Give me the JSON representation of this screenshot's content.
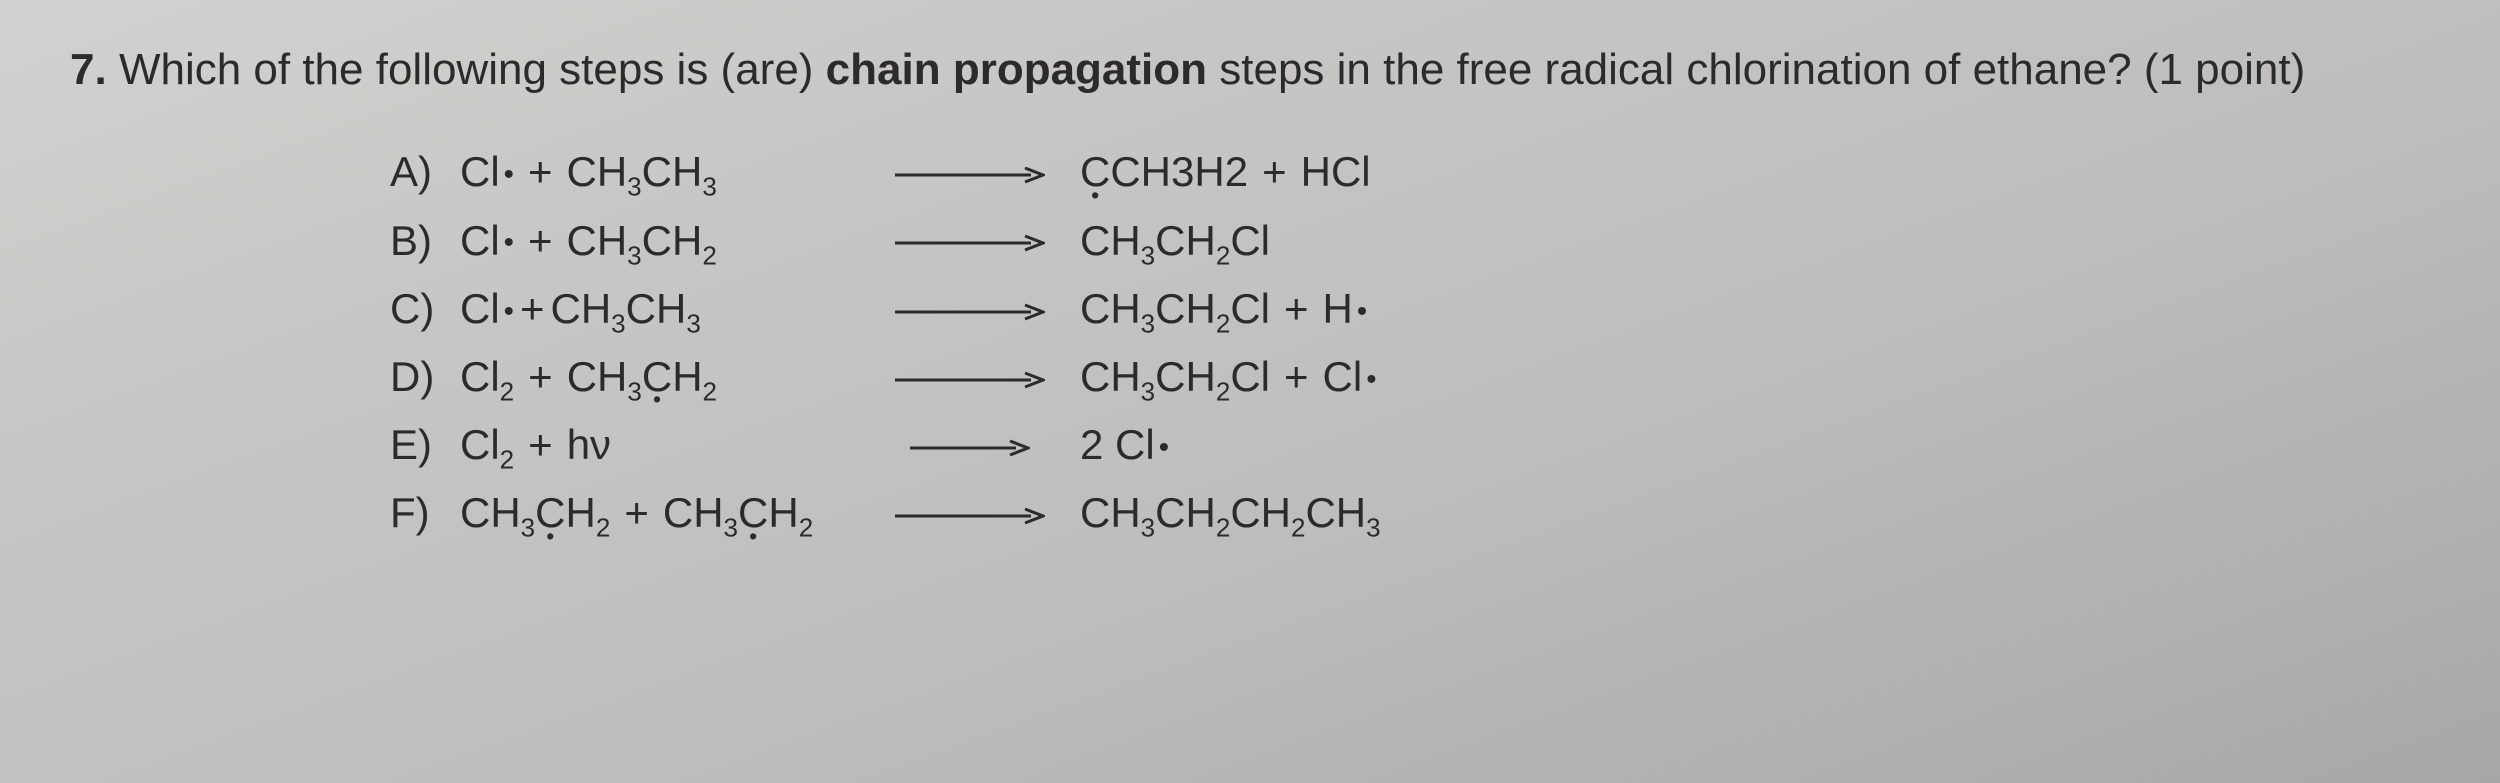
{
  "question": {
    "number": "7.",
    "stem_before_bold": "Which of the following steps is (are) ",
    "bold_phrase": "chain propagation",
    "stem_after_bold": " steps in the free radical chlorination of ethane? (1 point)"
  },
  "arrow": {
    "width": 150,
    "height": 18,
    "stroke": "#2b2b2b",
    "stroke_width": 3
  },
  "options": [
    {
      "label": "A)",
      "lhs": [
        {
          "t": "Cl",
          "dot_after": true
        },
        {
          "t": "+",
          "plus": true
        },
        {
          "t": "CH",
          "sub": "3"
        },
        {
          "t": "CH",
          "sub": "3"
        }
      ],
      "rhs": [
        {
          "t": "CH3",
          "rad_under": "C"
        },
        {
          "t": "H2"
        },
        {
          "t": "+",
          "plus": true
        },
        {
          "t": "HCl"
        }
      ]
    },
    {
      "label": "B)",
      "lhs": [
        {
          "t": "Cl",
          "dot_after": true
        },
        {
          "t": "+",
          "plus": true
        },
        {
          "t": "CH",
          "sub": "3"
        },
        {
          "t": "CH",
          "sub": "2"
        }
      ],
      "rhs": [
        {
          "t": "CH",
          "sub": "3"
        },
        {
          "t": "CH",
          "sub": "2"
        },
        {
          "t": "Cl"
        }
      ]
    },
    {
      "label": "C)",
      "lhs": [
        {
          "t": "Cl",
          "dot_after": true
        },
        {
          "t": "+",
          "plus": true,
          "tight": true
        },
        {
          "t": "CH",
          "sub": "3"
        },
        {
          "t": "CH",
          "sub": "3"
        }
      ],
      "rhs": [
        {
          "t": "CH",
          "sub": "3"
        },
        {
          "t": "CH",
          "sub": "2"
        },
        {
          "t": "Cl"
        },
        {
          "t": "+",
          "plus": true
        },
        {
          "t": "H",
          "dot_after": true
        }
      ]
    },
    {
      "label": "D)",
      "lhs": [
        {
          "t": "Cl",
          "sub": "2"
        },
        {
          "t": "+",
          "plus": true
        },
        {
          "t": "CH",
          "sub": "3"
        },
        {
          "t": "",
          "rad_under": "C"
        },
        {
          "t": "H",
          "sub": "2"
        }
      ],
      "rhs": [
        {
          "t": "CH",
          "sub": "3"
        },
        {
          "t": "CH",
          "sub": "2"
        },
        {
          "t": "Cl"
        },
        {
          "t": "+",
          "plus": true
        },
        {
          "t": "Cl",
          "dot_after": true
        }
      ]
    },
    {
      "label": "E)",
      "lhs": [
        {
          "t": "Cl",
          "sub": "2"
        },
        {
          "t": "+",
          "plus": true
        },
        {
          "t": "hν"
        }
      ],
      "rhs": [
        {
          "t": "2 Cl",
          "dot_after": true
        }
      ],
      "arrow_short": true
    },
    {
      "label": "F)",
      "lhs": [
        {
          "t": "CH",
          "sub": "3"
        },
        {
          "t": "",
          "rad_under": "C"
        },
        {
          "t": "H",
          "sub": "2"
        },
        {
          "t": "+",
          "plus": true
        },
        {
          "t": "CH",
          "sub": "3"
        },
        {
          "t": "",
          "rad_under": "C"
        },
        {
          "t": "H",
          "sub": "2"
        }
      ],
      "rhs": [
        {
          "t": "CH",
          "sub": "3"
        },
        {
          "t": "CH",
          "sub": "2"
        },
        {
          "t": "CH",
          "sub": "2"
        },
        {
          "t": "CH",
          "sub": "3"
        }
      ]
    }
  ]
}
